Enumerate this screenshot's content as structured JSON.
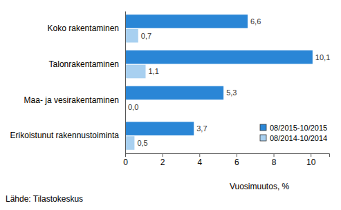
{
  "chart_data": {
    "type": "bar",
    "orientation": "horizontal",
    "categories": [
      "Koko rakentaminen",
      "Talonrakentaminen",
      "Maa- ja vesirakentaminen",
      "Erikoistunut rakennustoiminta"
    ],
    "series": [
      {
        "name": "08/2015-10/2015",
        "color": "#2a86d6",
        "values": [
          6.6,
          10.1,
          5.3,
          3.7
        ],
        "value_labels": [
          "6,6",
          "10,1",
          "5,3",
          "3,7"
        ]
      },
      {
        "name": "08/2014-10/2014",
        "color": "#a8d0f0",
        "values": [
          0.7,
          1.1,
          0.0,
          0.5
        ],
        "value_labels": [
          "0,7",
          "1,1",
          "0,0",
          "0,5"
        ]
      }
    ],
    "x_label": "Vuosimuutos, %",
    "source": "Lähde: Tilastokeskus",
    "xlim": [
      0,
      11
    ],
    "xticks": [
      0,
      2,
      4,
      6,
      8,
      10
    ],
    "grid": false,
    "data_labels": true,
    "legend": "lower right"
  }
}
